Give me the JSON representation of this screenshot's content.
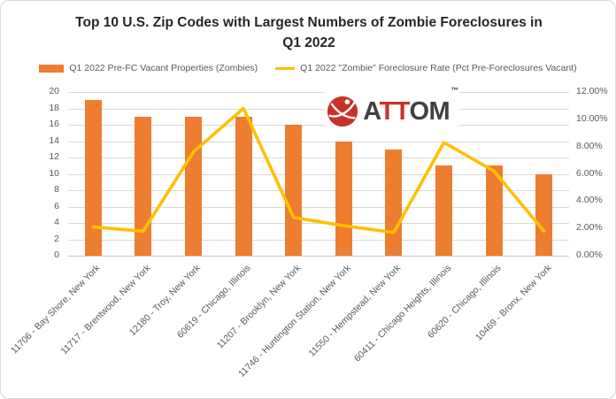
{
  "title": {
    "line1": "Top 10 U.S. Zip Codes with Largest Numbers of Zombie Foreclosures in",
    "line2": "Q1 2022"
  },
  "logo": {
    "segments": [
      {
        "text": "A",
        "color": "#414042"
      },
      {
        "text": "TT",
        "color": "#C8322B"
      },
      {
        "text": "OM",
        "color": "#414042"
      }
    ],
    "trademark": "™",
    "icon": "attom-globe-icon",
    "icon_color": "#C8322B"
  },
  "colors": {
    "bar": "#ED7D31",
    "line": "#FFC000",
    "axis_text": "#595959",
    "title_text": "#262626",
    "gridline": "#D9D9D9",
    "frame_border": "#D8D8D8"
  },
  "chart_data": {
    "type": "bar+line",
    "title": "Top 10 U.S. Zip Codes with Largest Numbers of Zombie Foreclosures in Q1 2022",
    "grid": true,
    "legend_position": "top",
    "categories": [
      "11706 - Bay Shore, New York",
      "11717 - Brentwood, New York",
      "12180 - Troy, New York",
      "60619 - Chicago, Illinois",
      "11207 - Brooklyn, New York",
      "11746 - Huntington Station, New York",
      "11550 - Hempstead, New York",
      "60411 - Chicago Heights, Illinois",
      "60620 - Chicago, Illinois",
      "10469 - Bronx, New York"
    ],
    "series": [
      {
        "name": "Q1 2022 Pre-FC Vacant Properties (Zombies)",
        "type": "bar",
        "y_axis": "left",
        "color": "#ED7D31",
        "values": [
          19,
          17,
          17,
          17,
          16,
          14,
          13,
          11,
          11,
          10
        ]
      },
      {
        "name": "Q1 2022 \"Zombie\" Foreclosure Rate (Pct Pre-Foreclosures Vacant)",
        "type": "line",
        "y_axis": "right",
        "color": "#FFC000",
        "unit": "%",
        "values": [
          2.1,
          1.8,
          7.6,
          10.8,
          2.8,
          2.2,
          1.7,
          8.3,
          6.2,
          1.8
        ]
      }
    ],
    "left_axis": {
      "min": 0,
      "max": 20,
      "step": 2,
      "tick_labels": [
        "20",
        "18",
        "16",
        "14",
        "12",
        "10",
        "8",
        "6",
        "4",
        "2",
        "0"
      ]
    },
    "right_axis": {
      "min": 0,
      "max": 12,
      "step": 2,
      "tick_labels": [
        "12.00%",
        "10.00%",
        "8.00%",
        "6.00%",
        "4.00%",
        "2.00%",
        "0.00%"
      ]
    }
  }
}
